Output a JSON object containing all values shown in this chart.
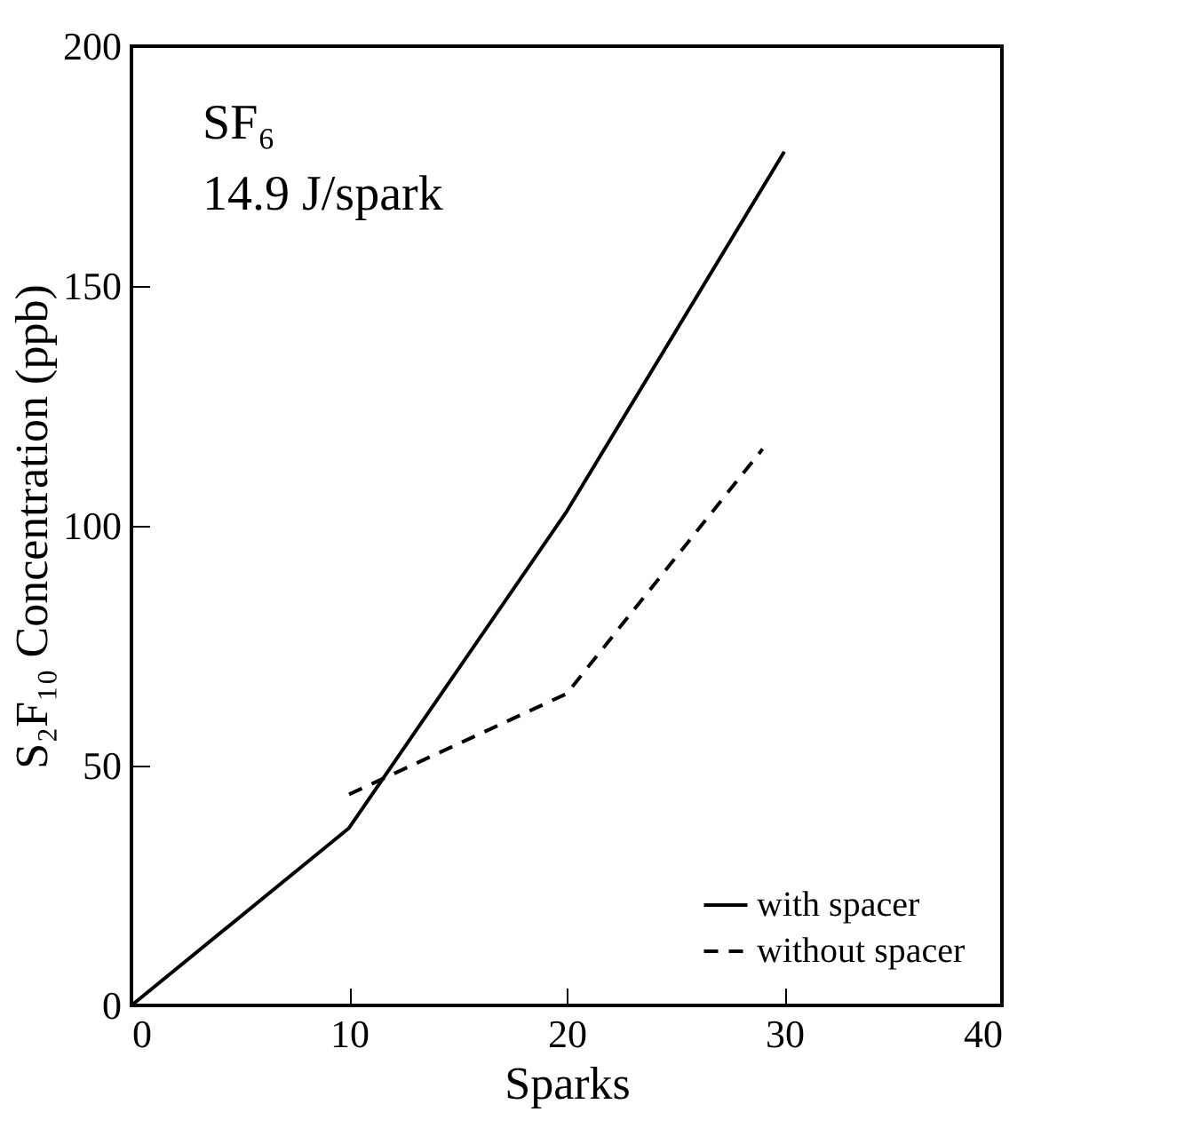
{
  "chart_data": {
    "type": "line",
    "xlabel": "Sparks",
    "ylabel": "S₂F₁₀ Concentration (ppb)",
    "annotations": [
      "SF₆",
      "14.9 J/spark"
    ],
    "xlim": [
      0,
      40
    ],
    "xticks": [
      0,
      10,
      20,
      30,
      40
    ],
    "ylim": [
      0,
      200
    ],
    "yticks": [
      0,
      50,
      100,
      150,
      200
    ],
    "legend": "bottom right",
    "grid": false,
    "marker": "none",
    "series": [
      {
        "name": "with spacer",
        "color": "#000000",
        "line_style": "solid",
        "x": [
          0,
          10,
          20,
          30
        ],
        "values": [
          0,
          37,
          103,
          178
        ]
      },
      {
        "name": "without spacer",
        "color": "#000000",
        "line_style": "dashed",
        "x": [
          10,
          20,
          29
        ],
        "values": [
          44,
          65,
          116
        ]
      }
    ]
  }
}
